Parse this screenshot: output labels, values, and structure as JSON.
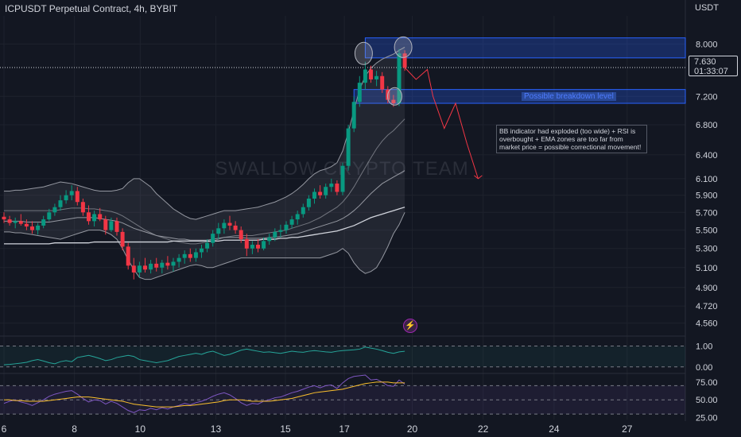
{
  "header": {
    "title": "ICPUSDT Perpetual Contract, 4h, BYBIT",
    "currency": "USDT"
  },
  "watermark": "SWALLOW CRYPTO TEAM",
  "price_axis": {
    "ticks": [
      "8.000",
      "7.200",
      "6.800",
      "6.400",
      "6.100",
      "5.900",
      "5.700",
      "5.500",
      "5.300",
      "5.100",
      "4.900",
      "4.720",
      "4.560"
    ]
  },
  "current_price": {
    "value": "7.630",
    "countdown": "01:33:07"
  },
  "annotations": {
    "breakdown_label": "Possible breakdown level",
    "note": "BB indicator had exploded (too wide) + RSI is overbought + EMA zones are too far from market price = possible correctional movement!"
  },
  "indicator_panes": [
    {
      "ticks": [
        "1.00",
        "0.00"
      ]
    },
    {
      "ticks": [
        "75.00",
        "50.00",
        "25.00"
      ]
    }
  ],
  "time_axis": {
    "ticks": [
      "6",
      "8",
      "10",
      "13",
      "15",
      "17",
      "20",
      "22",
      "24",
      "27"
    ]
  },
  "colors": {
    "background": "#131722",
    "bull": "#089981",
    "bear": "#f23645",
    "zone": "#2962ff",
    "projection": "#f23645",
    "band": "#9598a1",
    "ema": "#d1d4dc",
    "oscillator": "#26a69a",
    "rsi": "#7e57c2",
    "rsi_ma": "#fbc02d"
  },
  "chart_data": [
    {
      "type": "candlestick",
      "symbol": "ICPUSDT Perpetual Contract",
      "interval": "4h",
      "exchange": "BYBIT",
      "y_scale": "log",
      "ylim": [
        4.5,
        8.2
      ],
      "x_tick_labels": [
        "6",
        "8",
        "10",
        "13",
        "15",
        "17",
        "20",
        "22",
        "24",
        "27"
      ],
      "candles": [
        [
          5.65,
          5.7,
          5.58,
          5.62
        ],
        [
          5.62,
          5.66,
          5.55,
          5.58
        ],
        [
          5.58,
          5.64,
          5.52,
          5.6
        ],
        [
          5.6,
          5.68,
          5.55,
          5.57
        ],
        [
          5.57,
          5.62,
          5.5,
          5.54
        ],
        [
          5.54,
          5.6,
          5.46,
          5.5
        ],
        [
          5.5,
          5.58,
          5.45,
          5.55
        ],
        [
          5.55,
          5.66,
          5.52,
          5.62
        ],
        [
          5.62,
          5.74,
          5.6,
          5.7
        ],
        [
          5.7,
          5.8,
          5.66,
          5.76
        ],
        [
          5.76,
          5.9,
          5.72,
          5.84
        ],
        [
          5.84,
          5.96,
          5.8,
          5.9
        ],
        [
          5.9,
          6.02,
          5.84,
          5.95
        ],
        [
          5.95,
          6.0,
          5.78,
          5.82
        ],
        [
          5.82,
          5.86,
          5.66,
          5.7
        ],
        [
          5.7,
          5.78,
          5.56,
          5.6
        ],
        [
          5.6,
          5.72,
          5.54,
          5.68
        ],
        [
          5.68,
          5.75,
          5.6,
          5.62
        ],
        [
          5.62,
          5.66,
          5.45,
          5.5
        ],
        [
          5.5,
          5.64,
          5.48,
          5.6
        ],
        [
          5.6,
          5.64,
          5.44,
          5.48
        ],
        [
          5.48,
          5.52,
          5.28,
          5.32
        ],
        [
          5.32,
          5.36,
          5.08,
          5.12
        ],
        [
          5.12,
          5.2,
          4.98,
          5.05
        ],
        [
          5.05,
          5.16,
          5.0,
          5.12
        ],
        [
          5.12,
          5.2,
          5.05,
          5.08
        ],
        [
          5.08,
          5.18,
          5.04,
          5.14
        ],
        [
          5.14,
          5.2,
          5.06,
          5.1
        ],
        [
          5.1,
          5.18,
          5.04,
          5.15
        ],
        [
          5.15,
          5.22,
          5.08,
          5.12
        ],
        [
          5.12,
          5.2,
          5.06,
          5.16
        ],
        [
          5.16,
          5.24,
          5.1,
          5.2
        ],
        [
          5.2,
          5.28,
          5.14,
          5.24
        ],
        [
          5.24,
          5.3,
          5.16,
          5.2
        ],
        [
          5.2,
          5.3,
          5.16,
          5.26
        ],
        [
          5.26,
          5.34,
          5.2,
          5.3
        ],
        [
          5.3,
          5.4,
          5.26,
          5.36
        ],
        [
          5.36,
          5.5,
          5.32,
          5.46
        ],
        [
          5.46,
          5.58,
          5.4,
          5.52
        ],
        [
          5.52,
          5.62,
          5.46,
          5.58
        ],
        [
          5.58,
          5.66,
          5.5,
          5.55
        ],
        [
          5.55,
          5.6,
          5.46,
          5.5
        ],
        [
          5.5,
          5.54,
          5.36,
          5.4
        ],
        [
          5.4,
          5.46,
          5.22,
          5.3
        ],
        [
          5.3,
          5.38,
          5.24,
          5.34
        ],
        [
          5.34,
          5.4,
          5.26,
          5.3
        ],
        [
          5.3,
          5.42,
          5.28,
          5.38
        ],
        [
          5.38,
          5.46,
          5.34,
          5.42
        ],
        [
          5.42,
          5.52,
          5.38,
          5.48
        ],
        [
          5.48,
          5.56,
          5.42,
          5.5
        ],
        [
          5.5,
          5.6,
          5.46,
          5.56
        ],
        [
          5.56,
          5.66,
          5.52,
          5.62
        ],
        [
          5.62,
          5.72,
          5.56,
          5.68
        ],
        [
          5.68,
          5.8,
          5.64,
          5.76
        ],
        [
          5.76,
          5.9,
          5.72,
          5.86
        ],
        [
          5.86,
          5.98,
          5.8,
          5.94
        ],
        [
          5.94,
          6.02,
          5.86,
          5.9
        ],
        [
          5.9,
          6.04,
          5.86,
          6.0
        ],
        [
          6.0,
          6.1,
          5.94,
          6.04
        ],
        [
          6.04,
          6.08,
          5.9,
          5.94
        ],
        [
          5.94,
          6.3,
          5.9,
          6.26
        ],
        [
          6.26,
          6.8,
          6.2,
          6.75
        ],
        [
          6.75,
          7.2,
          6.7,
          7.12
        ],
        [
          7.12,
          7.5,
          7.05,
          7.4
        ],
        [
          7.4,
          7.72,
          7.3,
          7.6
        ],
        [
          7.6,
          7.66,
          7.4,
          7.45
        ],
        [
          7.45,
          7.58,
          7.35,
          7.5
        ],
        [
          7.5,
          7.56,
          7.25,
          7.3
        ],
        [
          7.3,
          7.35,
          7.1,
          7.15
        ],
        [
          7.15,
          7.22,
          7.05,
          7.1
        ],
        [
          7.1,
          7.92,
          7.06,
          7.85
        ],
        [
          7.85,
          7.9,
          7.58,
          7.63
        ]
      ],
      "bollinger_upper": [
        5.95,
        5.95,
        5.96,
        5.96,
        5.97,
        5.98,
        5.99,
        6.0,
        6.02,
        6.04,
        6.06,
        6.05,
        6.04,
        6.02,
        6.0,
        5.98,
        5.96,
        5.95,
        5.95,
        5.95,
        5.96,
        5.98,
        6.05,
        6.1,
        6.1,
        6.05,
        6.0,
        5.92,
        5.86,
        5.8,
        5.74,
        5.7,
        5.66,
        5.63,
        5.62,
        5.64,
        5.66,
        5.68,
        5.7,
        5.72,
        5.72,
        5.72,
        5.73,
        5.74,
        5.75,
        5.76,
        5.78,
        5.8,
        5.82,
        5.85,
        5.88,
        5.92,
        5.97,
        6.03,
        6.1,
        6.16,
        6.2,
        6.22,
        6.25,
        6.3,
        6.45,
        6.7,
        7.0,
        7.3,
        7.5,
        7.62,
        7.7,
        7.76,
        7.8,
        7.84,
        7.9,
        7.95
      ],
      "bollinger_basis": [
        5.72,
        5.72,
        5.72,
        5.72,
        5.72,
        5.72,
        5.72,
        5.72,
        5.72,
        5.72,
        5.73,
        5.74,
        5.75,
        5.75,
        5.75,
        5.74,
        5.74,
        5.73,
        5.72,
        5.71,
        5.69,
        5.66,
        5.62,
        5.58,
        5.54,
        5.5,
        5.47,
        5.44,
        5.42,
        5.4,
        5.38,
        5.37,
        5.36,
        5.35,
        5.35,
        5.36,
        5.37,
        5.38,
        5.4,
        5.42,
        5.43,
        5.44,
        5.44,
        5.44,
        5.44,
        5.45,
        5.46,
        5.47,
        5.48,
        5.49,
        5.5,
        5.52,
        5.54,
        5.56,
        5.58,
        5.61,
        5.64,
        5.68,
        5.72,
        5.76,
        5.82,
        5.9,
        6.0,
        6.12,
        6.24,
        6.36,
        6.48,
        6.58,
        6.66,
        6.72,
        6.8,
        6.88
      ],
      "bollinger_lower": [
        5.48,
        5.48,
        5.47,
        5.47,
        5.46,
        5.45,
        5.44,
        5.43,
        5.42,
        5.41,
        5.4,
        5.42,
        5.44,
        5.46,
        5.48,
        5.5,
        5.5,
        5.5,
        5.48,
        5.45,
        5.4,
        5.3,
        5.18,
        5.08,
        5.0,
        4.98,
        4.98,
        5.0,
        5.02,
        5.04,
        5.06,
        5.08,
        5.1,
        5.12,
        5.13,
        5.12,
        5.1,
        5.1,
        5.12,
        5.14,
        5.16,
        5.18,
        5.2,
        5.2,
        5.2,
        5.2,
        5.2,
        5.2,
        5.2,
        5.2,
        5.2,
        5.2,
        5.2,
        5.2,
        5.2,
        5.2,
        5.2,
        5.22,
        5.24,
        5.26,
        5.3,
        5.25,
        5.15,
        5.08,
        5.04,
        5.06,
        5.1,
        5.2,
        5.32,
        5.46,
        5.56,
        5.7
      ],
      "ema_fast": [
        5.6,
        5.6,
        5.6,
        5.6,
        5.59,
        5.59,
        5.59,
        5.59,
        5.59,
        5.6,
        5.61,
        5.62,
        5.63,
        5.64,
        5.64,
        5.64,
        5.64,
        5.63,
        5.62,
        5.61,
        5.6,
        5.58,
        5.55,
        5.52,
        5.5,
        5.48,
        5.46,
        5.44,
        5.43,
        5.42,
        5.41,
        5.4,
        5.4,
        5.39,
        5.39,
        5.39,
        5.39,
        5.4,
        5.41,
        5.42,
        5.42,
        5.42,
        5.42,
        5.41,
        5.41,
        5.41,
        5.41,
        5.42,
        5.42,
        5.43,
        5.44,
        5.45,
        5.46,
        5.48,
        5.5,
        5.52,
        5.54,
        5.56,
        5.58,
        5.6,
        5.63,
        5.67,
        5.72,
        5.78,
        5.85,
        5.92,
        5.98,
        6.04,
        6.08,
        6.12,
        6.16,
        6.2
      ],
      "ema_slow": [
        5.35,
        5.35,
        5.35,
        5.35,
        5.35,
        5.35,
        5.35,
        5.35,
        5.35,
        5.36,
        5.36,
        5.36,
        5.36,
        5.36,
        5.36,
        5.36,
        5.37,
        5.37,
        5.37,
        5.37,
        5.37,
        5.37,
        5.37,
        5.37,
        5.37,
        5.37,
        5.37,
        5.37,
        5.37,
        5.37,
        5.38,
        5.38,
        5.38,
        5.38,
        5.38,
        5.38,
        5.38,
        5.38,
        5.38,
        5.39,
        5.39,
        5.39,
        5.39,
        5.39,
        5.39,
        5.39,
        5.4,
        5.4,
        5.4,
        5.41,
        5.41,
        5.42,
        5.42,
        5.43,
        5.44,
        5.45,
        5.46,
        5.47,
        5.48,
        5.49,
        5.51,
        5.53,
        5.55,
        5.58,
        5.61,
        5.64,
        5.66,
        5.68,
        5.7,
        5.72,
        5.74,
        5.76
      ],
      "current_price": 7.63,
      "zones": [
        {
          "label": "",
          "from_bar": 64,
          "to_bar": 182,
          "low": 7.78,
          "high": 8.1
        },
        {
          "label": "Possible breakdown level",
          "from_bar": 62,
          "to_bar": 240,
          "low": 7.1,
          "high": 7.3
        }
      ],
      "projection_path": [
        [
          71,
          7.63
        ],
        [
          73,
          7.45
        ],
        [
          75,
          7.6
        ],
        [
          76,
          7.2
        ],
        [
          78,
          6.75
        ],
        [
          80,
          7.1
        ],
        [
          82,
          6.55
        ],
        [
          84,
          6.1
        ]
      ]
    },
    {
      "type": "line",
      "ylim": [
        -0.2,
        1.4
      ],
      "reference_lines": [
        1.0,
        0.0
      ],
      "values": [
        0.1,
        0.12,
        0.15,
        0.18,
        0.22,
        0.3,
        0.35,
        0.28,
        0.2,
        0.15,
        0.25,
        0.3,
        0.25,
        0.45,
        0.5,
        0.55,
        0.48,
        0.4,
        0.3,
        0.35,
        0.45,
        0.5,
        0.55,
        0.5,
        0.35,
        0.3,
        0.25,
        0.2,
        0.25,
        0.3,
        0.4,
        0.5,
        0.55,
        0.6,
        0.65,
        0.6,
        0.7,
        0.75,
        0.65,
        0.55,
        0.6,
        0.7,
        0.8,
        0.85,
        0.8,
        0.75,
        0.7,
        0.72,
        0.68,
        0.65,
        0.7,
        0.75,
        0.72,
        0.7,
        0.75,
        0.78,
        0.75,
        0.72,
        0.7,
        0.75,
        0.78,
        0.8,
        0.82,
        0.85,
        0.95,
        0.9,
        0.85,
        0.78,
        0.7,
        0.65,
        0.72,
        0.75
      ]
    },
    {
      "type": "line",
      "ylim": [
        20,
        85
      ],
      "reference_lines": [
        70,
        50,
        30
      ],
      "series": [
        {
          "values": [
            45,
            48,
            50,
            47,
            45,
            42,
            46,
            50,
            55,
            58,
            60,
            62,
            63,
            58,
            52,
            47,
            50,
            49,
            44,
            48,
            45,
            40,
            35,
            32,
            36,
            35,
            38,
            36,
            39,
            37,
            40,
            42,
            45,
            43,
            46,
            48,
            51,
            55,
            58,
            60,
            57,
            52,
            46,
            42,
            45,
            44,
            48,
            50,
            53,
            54,
            57,
            60,
            62,
            65,
            68,
            70,
            67,
            70,
            71,
            66,
            74,
            80,
            83,
            84,
            85,
            78,
            79,
            75,
            70,
            69,
            78,
            72
          ]
        },
        {
          "values": [
            50,
            50,
            49,
            49,
            48,
            48,
            48,
            48,
            49,
            50,
            51,
            52,
            53,
            54,
            54,
            54,
            53,
            52,
            51,
            50,
            49,
            48,
            46,
            44,
            43,
            42,
            41,
            40,
            40,
            40,
            40,
            41,
            42,
            42,
            43,
            44,
            45,
            46,
            47,
            49,
            50,
            50,
            50,
            49,
            48,
            48,
            48,
            48,
            49,
            50,
            51,
            52,
            54,
            56,
            58,
            60,
            61,
            62,
            63,
            64,
            65,
            67,
            69,
            71,
            73,
            74,
            75,
            75,
            75,
            74,
            74,
            74
          ]
        }
      ]
    }
  ]
}
